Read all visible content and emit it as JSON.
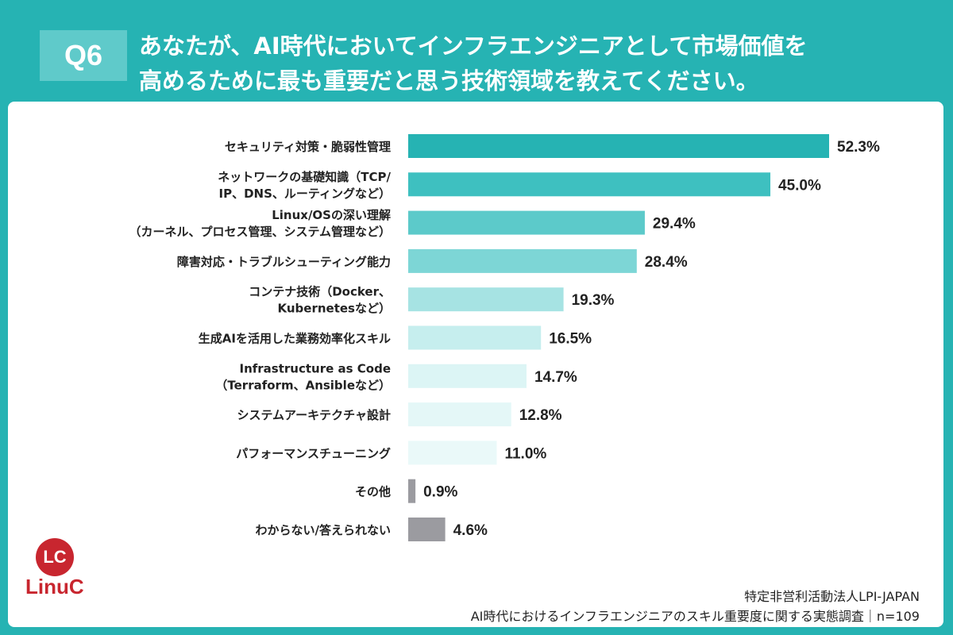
{
  "question": {
    "badge": "Q6",
    "line1": "あなたが、AI時代においてインフラエンジニアとして市場価値を",
    "line2": "高めるために最も重要だと思う技術領域を教えてください。"
  },
  "chart_data": {
    "type": "bar",
    "orientation": "horizontal",
    "categories": [
      [
        "セキュリティ対策・脆弱性管理"
      ],
      [
        "ネットワークの基礎知識（TCP/",
        "IP、DNS、ルーティングなど）"
      ],
      [
        "Linux/OSの深い理解",
        "（カーネル、プロセス管理、システム管理など）"
      ],
      [
        "障害対応・トラブルシューティング能力"
      ],
      [
        "コンテナ技術（Docker、",
        "Kubernetesなど）"
      ],
      [
        "生成AIを活用した業務効率化スキル"
      ],
      [
        "Infrastructure as Code",
        "（Terraform、Ansibleなど）"
      ],
      [
        "システムアーキテクチャ設計"
      ],
      [
        "パフォーマンスチューニング"
      ],
      [
        "その他"
      ],
      [
        "わからない/答えられない"
      ]
    ],
    "values": [
      52.3,
      45.0,
      29.4,
      28.4,
      19.3,
      16.5,
      14.7,
      12.8,
      11.0,
      0.9,
      4.6
    ],
    "value_labels": [
      "52.3%",
      "45.0%",
      "29.4%",
      "28.4%",
      "19.3%",
      "16.5%",
      "14.7%",
      "12.8%",
      "11.0%",
      "0.9%",
      "4.6%"
    ],
    "colors": [
      "#26b3b3",
      "#3ec0c0",
      "#5ccaca",
      "#7dd6d6",
      "#a6e3e3",
      "#c6eeee",
      "#dcf5f5",
      "#e4f7f7",
      "#eaf9f9",
      "#9b9ba0",
      "#9b9ba0"
    ],
    "xlim": [
      0,
      52.3
    ]
  },
  "logo": {
    "mark": "LC",
    "name": "LinuC"
  },
  "source": {
    "line1": "特定非営利活動法人LPI-JAPAN",
    "line2": "AI時代におけるインフラエンジニアのスキル重要度に関する実態調査｜n=109"
  }
}
